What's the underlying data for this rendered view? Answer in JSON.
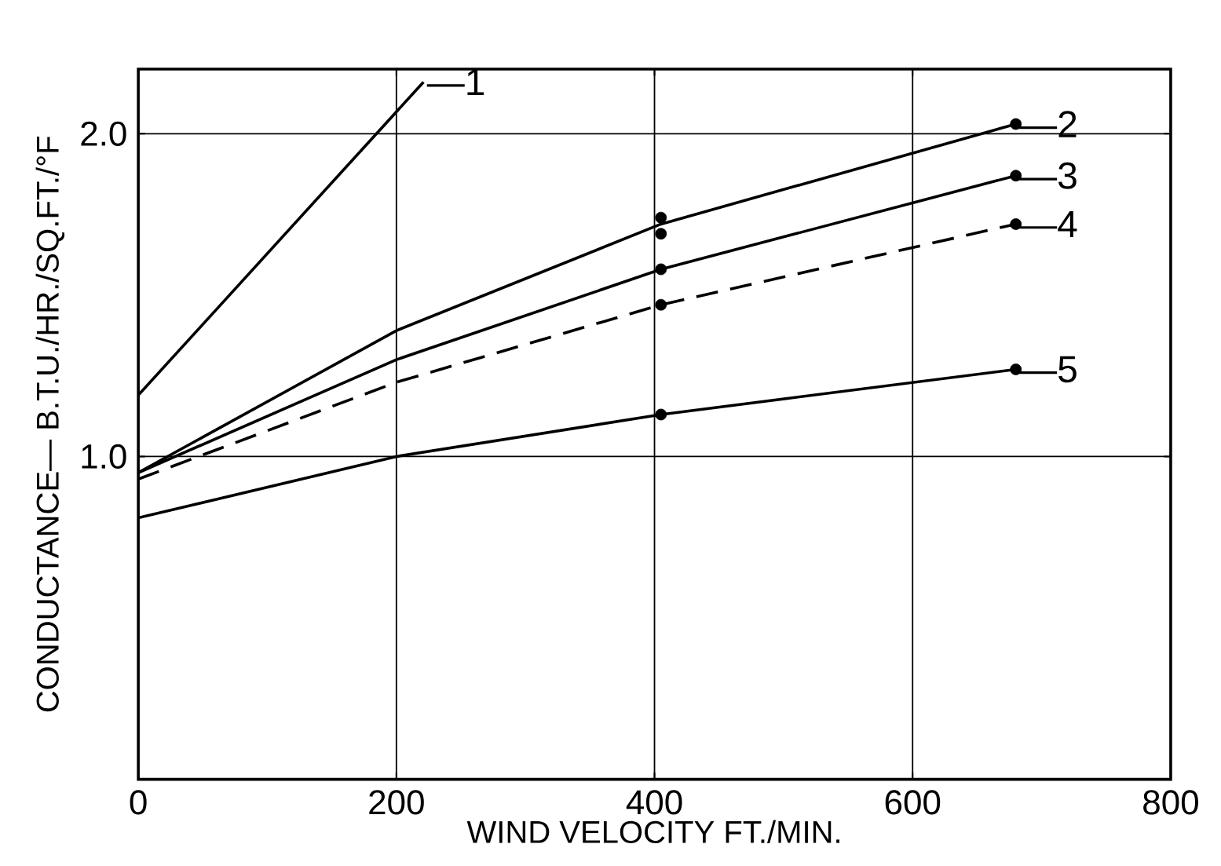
{
  "chart_data": {
    "type": "line",
    "xlabel": "WIND  VELOCITY   FT./MIN.",
    "ylabel": "CONDUCTANCE— B.T.U./HR./SQ.FT./°F",
    "xlim": [
      0,
      800
    ],
    "xticks": [
      0,
      200,
      400,
      600,
      800
    ],
    "ylim": [
      0,
      2.2
    ],
    "yticks": [
      {
        "value": 1.0,
        "label": "1.0"
      },
      {
        "value": 2.0,
        "label": "2.0"
      }
    ],
    "grid": true,
    "series": [
      {
        "name": "—1",
        "color": "#000000",
        "x": [
          0,
          221
        ],
        "values": [
          1.19,
          2.16
        ]
      },
      {
        "name": "—2",
        "color": "#000000",
        "x": [
          0,
          200,
          405,
          680
        ],
        "values": [
          0.95,
          1.39,
          1.72,
          2.03
        ]
      },
      {
        "name": "—3",
        "color": "#000000",
        "x": [
          0,
          200,
          405,
          680
        ],
        "values": [
          0.95,
          1.3,
          1.58,
          1.87
        ]
      },
      {
        "name": "—4",
        "color": "#000000",
        "x": [
          0,
          200,
          405,
          680
        ],
        "values": [
          0.93,
          1.23,
          1.47,
          1.72
        ],
        "line_style": "dashed"
      },
      {
        "name": "—5",
        "color": "#000000",
        "x": [
          0,
          200,
          405,
          680
        ],
        "values": [
          0.81,
          1.0,
          1.13,
          1.27
        ]
      },
      {
        "type": "scatter",
        "color": "#000000",
        "marker": "circle",
        "x": [
          405,
          405,
          680
        ],
        "values": [
          1.74,
          1.69,
          2.03
        ]
      },
      {
        "type": "scatter",
        "color": "#000000",
        "marker": "circle",
        "x": [
          405,
          680
        ],
        "values": [
          1.58,
          1.87
        ]
      },
      {
        "type": "scatter",
        "color": "#000000",
        "marker": "circle",
        "x": [
          405,
          680
        ],
        "values": [
          1.47,
          1.72
        ]
      },
      {
        "type": "scatter",
        "color": "#000000",
        "marker": "circle",
        "x": [
          405,
          680
        ],
        "values": [
          1.13,
          1.27
        ]
      }
    ]
  }
}
